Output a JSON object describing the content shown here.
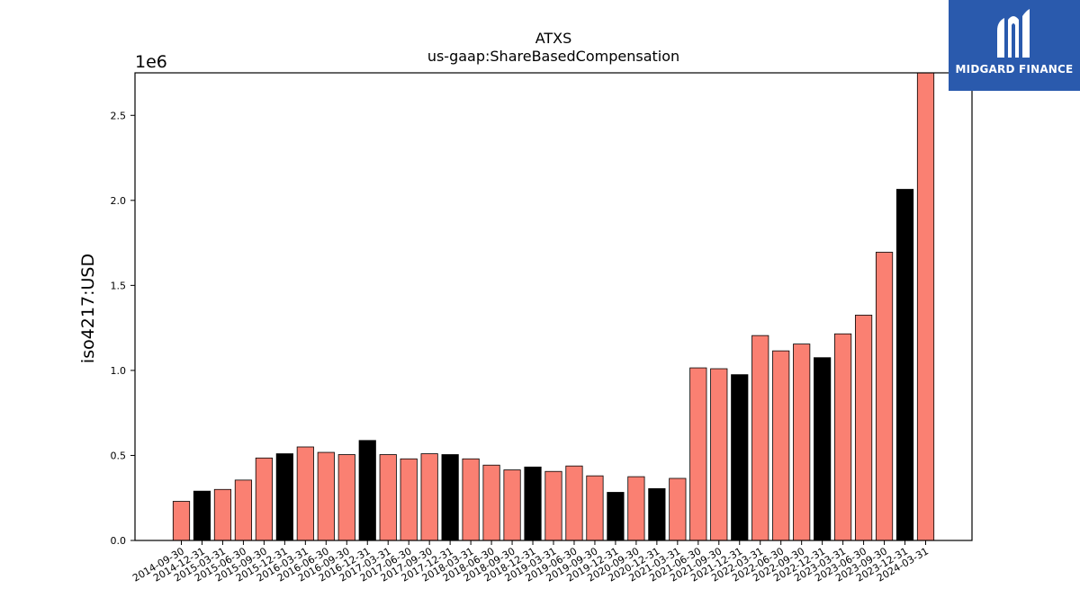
{
  "chart_data": {
    "type": "bar",
    "title": "ATXS",
    "subtitle": "us-gaap:ShareBasedCompensation",
    "ylabel": "iso4217:USD",
    "xlabel": "",
    "scale_label": "1e6",
    "ylim": [
      0,
      2750000
    ],
    "yticks": [
      "0.0",
      "0.5",
      "1.0",
      "1.5",
      "2.0",
      "2.5"
    ],
    "ytick_values": [
      0,
      500000,
      1000000,
      1500000,
      2000000,
      2500000
    ],
    "grid": false,
    "colors": {
      "quarter": "#fa8072",
      "year_end": "#000000"
    },
    "categories": [
      "2014-09-30",
      "2014-12-31",
      "2015-03-31",
      "2015-06-30",
      "2015-09-30",
      "2015-12-31",
      "2016-03-31",
      "2016-06-30",
      "2016-09-30",
      "2016-12-31",
      "2017-03-31",
      "2017-06-30",
      "2017-09-30",
      "2017-12-31",
      "2018-03-31",
      "2018-06-30",
      "2018-09-30",
      "2018-12-31",
      "2019-03-31",
      "2019-06-30",
      "2019-09-30",
      "2019-12-31",
      "2020-09-30",
      "2020-12-31",
      "2021-03-31",
      "2021-06-30",
      "2021-09-30",
      "2021-12-31",
      "2022-03-31",
      "2022-06-30",
      "2022-09-30",
      "2022-12-31",
      "2023-03-31",
      "2023-06-30",
      "2023-09-30",
      "2023-12-31",
      "2024-03-31"
    ],
    "values": [
      230000,
      290000,
      300000,
      355000,
      485000,
      510000,
      550000,
      518000,
      505000,
      588000,
      505000,
      480000,
      510000,
      505000,
      480000,
      443000,
      415000,
      432000,
      406000,
      438000,
      380000,
      283000,
      375000,
      305000,
      365000,
      1015000,
      1010000,
      975000,
      1205000,
      1115000,
      1155000,
      1075000,
      1215000,
      1325000,
      1695000,
      2065000,
      2750000
    ],
    "year_end": [
      false,
      true,
      false,
      false,
      false,
      true,
      false,
      false,
      false,
      true,
      false,
      false,
      false,
      true,
      false,
      false,
      false,
      true,
      false,
      false,
      false,
      true,
      false,
      true,
      false,
      false,
      false,
      true,
      false,
      false,
      false,
      true,
      false,
      false,
      false,
      true,
      false
    ]
  },
  "logo": {
    "text": "MIDGARD FINANCE",
    "icon": "midgard-logo-icon"
  }
}
